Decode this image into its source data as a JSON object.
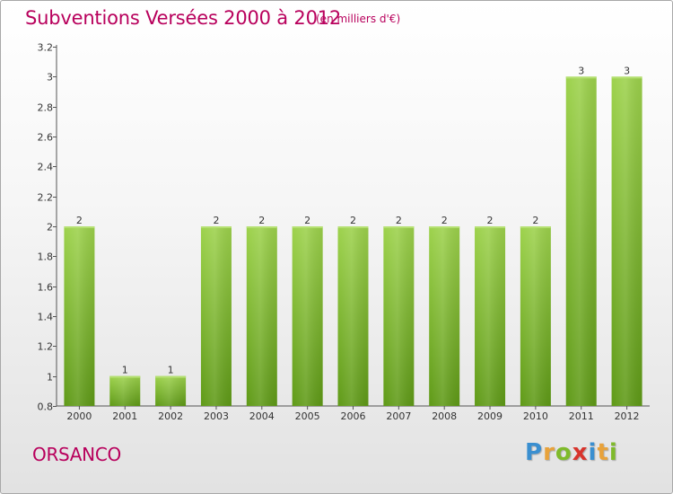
{
  "header": {
    "title": "Subventions Versées 2000 à 2012",
    "unit": "(en milliers d'€)"
  },
  "footer": {
    "place": "ORSANCO",
    "brand": "Proxiti"
  },
  "colors": {
    "accent": "#b8005c",
    "bar_light": "#9dd24c",
    "bar_dark": "#5f9a17",
    "axis": "#555555"
  },
  "chart_data": {
    "type": "bar",
    "categories": [
      "2000",
      "2001",
      "2002",
      "2003",
      "2004",
      "2005",
      "2006",
      "2007",
      "2008",
      "2009",
      "2010",
      "2011",
      "2012"
    ],
    "values": [
      2,
      1,
      1,
      2,
      2,
      2,
      2,
      2,
      2,
      2,
      2,
      3,
      3
    ],
    "data_labels": [
      "2",
      "1",
      "1",
      "2",
      "2",
      "2",
      "2",
      "2",
      "2",
      "2",
      "2",
      "3",
      "3"
    ],
    "y_ticks": [
      0.8,
      1,
      1.2,
      1.4,
      1.6,
      1.8,
      2,
      2.2,
      2.4,
      2.6,
      2.8,
      3,
      3.2
    ],
    "y_tick_labels": [
      "0.8",
      "1",
      "1.2",
      "1.4",
      "1.6",
      "1.8",
      "2",
      "2.2",
      "2.4",
      "2.6",
      "2.8",
      "3",
      "3.2"
    ],
    "ylim": [
      0.8,
      3.2
    ],
    "bar_display_top": [
      2,
      1,
      1,
      2,
      2,
      2,
      2,
      2,
      2,
      2,
      2,
      3,
      3
    ],
    "grid": false,
    "legend": "none"
  }
}
